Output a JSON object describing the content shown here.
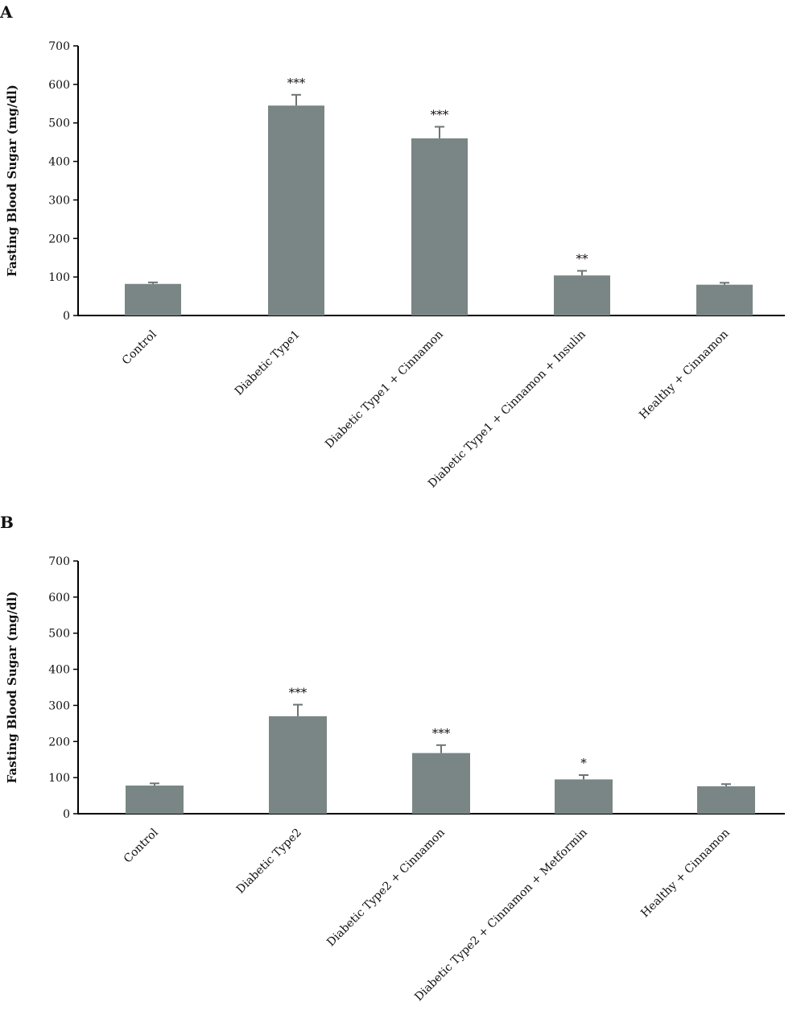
{
  "colors": {
    "bar": "#798685",
    "axis": "#000000",
    "errorbar": "#6b7574"
  },
  "chart_data": [
    {
      "panel_label": "A",
      "type": "bar",
      "ylabel": "Fasting Blood Sugar (mg/dl)",
      "ylim": [
        0,
        700
      ],
      "yticks": [
        0,
        100,
        200,
        300,
        400,
        500,
        600,
        700
      ],
      "categories": [
        "Control",
        "Diabetic Type1",
        "Diabetic Type1 + Cinnamon",
        "Diabetic Type1 + Cinnamon + Insulin",
        "Healthy + Cinnamon"
      ],
      "values": [
        82,
        545,
        460,
        104,
        80
      ],
      "error": [
        4,
        28,
        30,
        12,
        5
      ],
      "significance": [
        "",
        "***",
        "***",
        "**",
        ""
      ]
    },
    {
      "panel_label": "B",
      "type": "bar",
      "ylabel": "Fasting Blood Sugar (mg/dl)",
      "ylim": [
        0,
        700
      ],
      "yticks": [
        0,
        100,
        200,
        300,
        400,
        500,
        600,
        700
      ],
      "categories": [
        "Control",
        "Diabetic Type2",
        "Diabetic Type2 + Cinnamon",
        "Diabetic Type2 + Cinnamon + Metformin",
        "Healthy + Cinnamon"
      ],
      "values": [
        78,
        270,
        168,
        95,
        76
      ],
      "error": [
        6,
        32,
        22,
        12,
        6
      ],
      "significance": [
        "",
        "***",
        "***",
        "*",
        ""
      ]
    }
  ]
}
